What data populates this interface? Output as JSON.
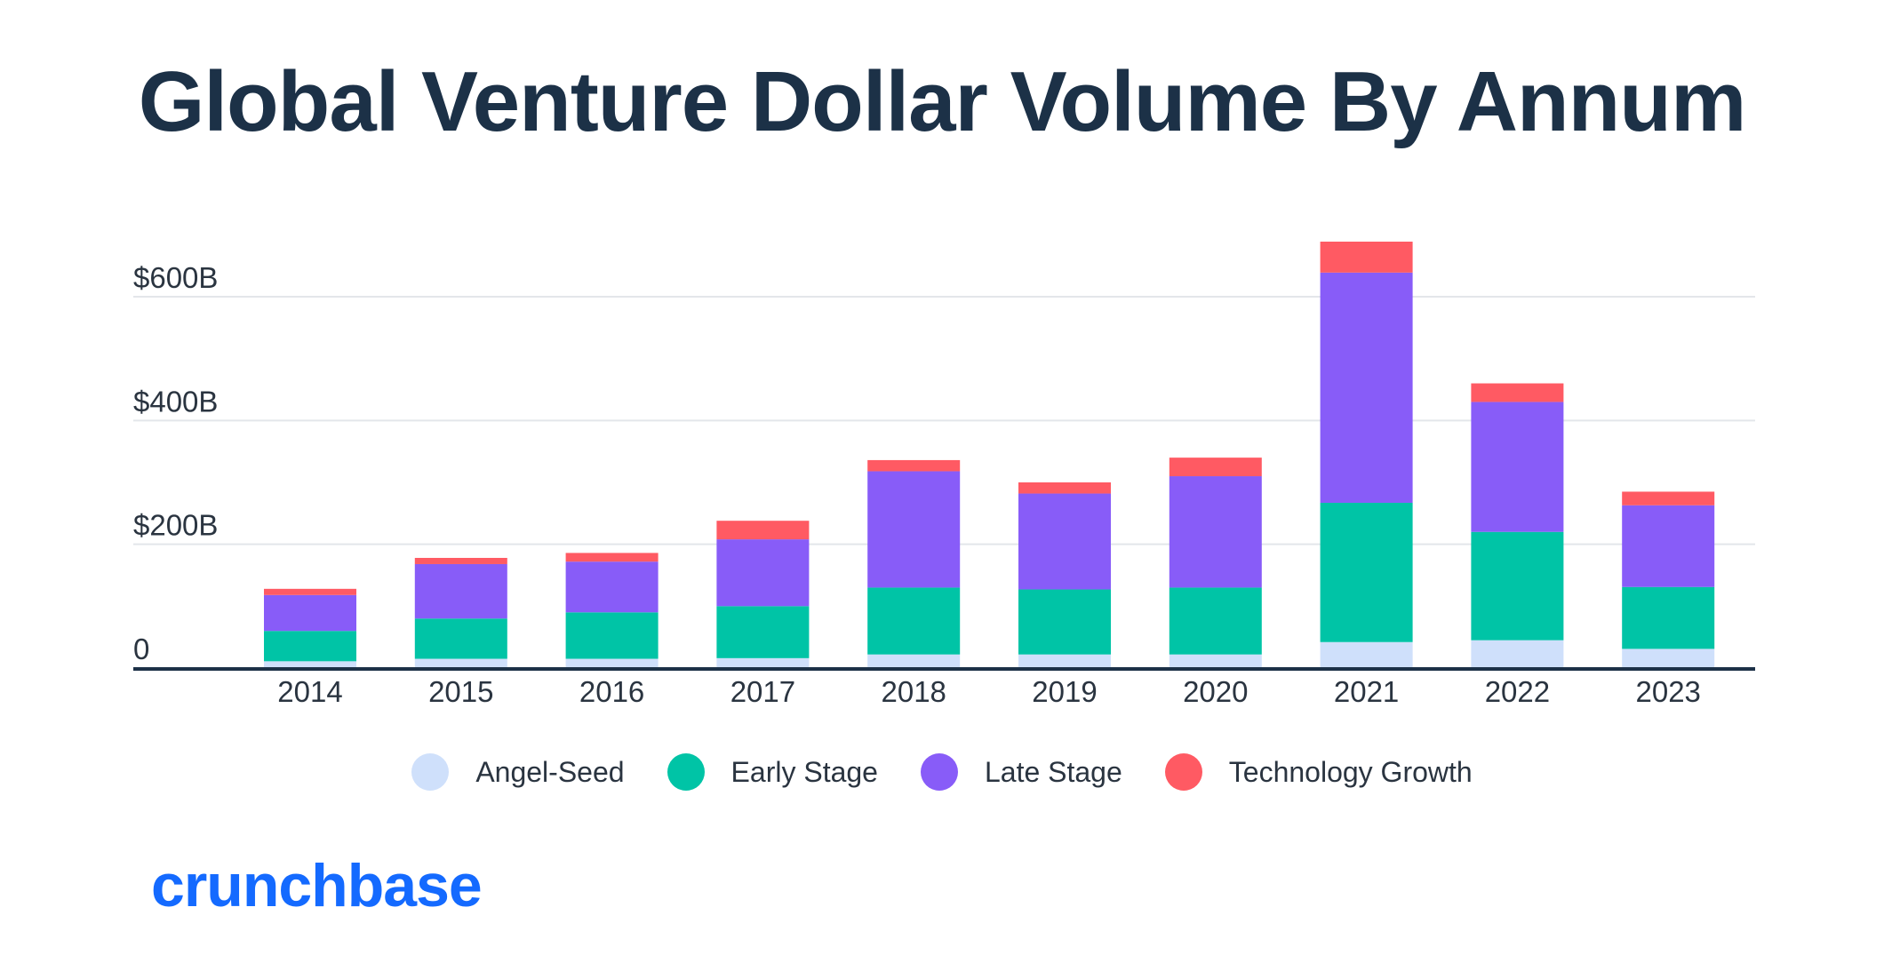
{
  "chart_data": {
    "type": "bar",
    "stacked": true,
    "title": "Global Venture Dollar Volume By Annum",
    "xlabel": "",
    "ylabel": "",
    "ylim": [
      0,
      600
    ],
    "y_ticks": [
      {
        "value": 0,
        "label": "0"
      },
      {
        "value": 200,
        "label": "$200B"
      },
      {
        "value": 400,
        "label": "$400B"
      },
      {
        "value": 600,
        "label": "$600B"
      }
    ],
    "categories": [
      "2014",
      "2015",
      "2016",
      "2017",
      "2018",
      "2019",
      "2020",
      "2021",
      "2022",
      "2023"
    ],
    "series": [
      {
        "name": "Angel-Seed",
        "color": "#cfe0fb",
        "values": [
          11,
          15,
          15,
          16,
          22,
          22,
          22,
          42,
          45,
          31
        ]
      },
      {
        "name": "Early Stage",
        "color": "#00c4a6",
        "values": [
          49,
          65,
          75,
          84,
          108,
          105,
          108,
          225,
          175,
          100
        ]
      },
      {
        "name": "Late Stage",
        "color": "#885cf8",
        "values": [
          58,
          88,
          82,
          108,
          188,
          155,
          180,
          372,
          210,
          132
        ]
      },
      {
        "name": "Technology Growth",
        "color": "#ff5a63",
        "values": [
          10,
          10,
          14,
          30,
          18,
          18,
          30,
          50,
          30,
          22
        ]
      }
    ],
    "legend_position": "bottom-center",
    "grid": true
  },
  "brand": {
    "text": "crunchbase"
  }
}
